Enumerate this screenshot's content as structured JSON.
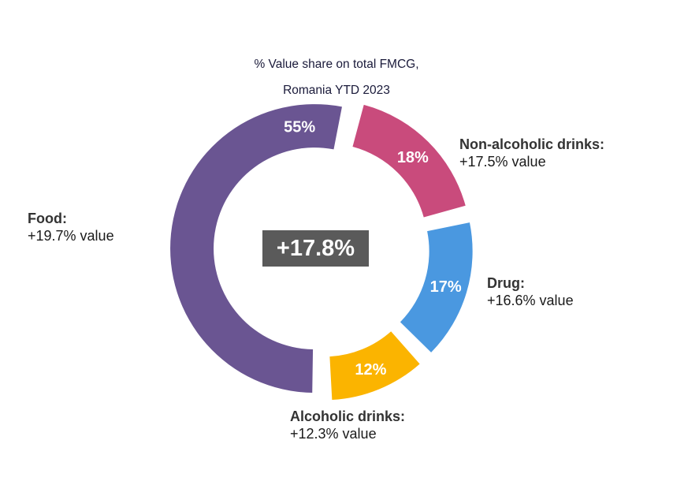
{
  "chart_data": {
    "type": "donut",
    "title_lines": [
      "% Value share on total FMCG,",
      "Romania YTD 2023"
    ],
    "center_label": "+17.8%",
    "slices": [
      {
        "name": "Non-alcoholic drinks:",
        "growth": "+17.5%  value",
        "share": 18,
        "share_label": "18%",
        "color": "#c94b7c"
      },
      {
        "name": "Drug:",
        "growth": "+16.6% value",
        "share": 17,
        "share_label": "17%",
        "color": "#4a98e0"
      },
      {
        "name": "Alcoholic drinks:",
        "growth": "+12.3% value",
        "share": 12,
        "share_label": "12%",
        "color": "#fbb400"
      },
      {
        "name": "Food:",
        "growth": "+19.7% value",
        "share": 55,
        "share_label": "55%",
        "color": "#6a5592"
      }
    ]
  }
}
